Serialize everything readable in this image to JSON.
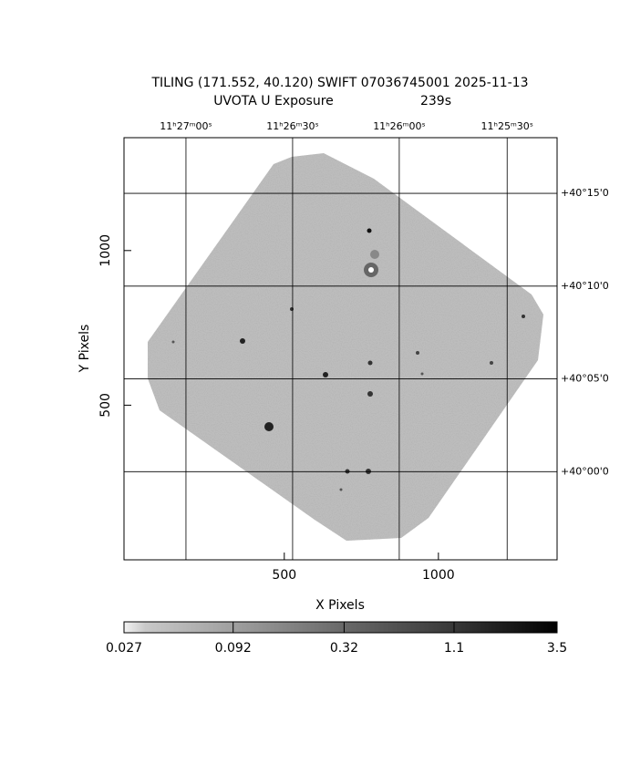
{
  "chart_data": {
    "type": "image",
    "title": "TILING (171.552, 40.120) SWIFT 07036745001 2025-11-13",
    "subtitle": "UVOTA U Exposure",
    "exposure": "239s",
    "xlabel": "X Pixels",
    "ylabel": "Y Pixels",
    "xlim": [
      -20,
      1385
    ],
    "ylim": [
      0,
      1365
    ],
    "xticks": [
      500,
      1000
    ],
    "yticks": [
      500,
      1000
    ],
    "grid": true,
    "top_ticks": [
      {
        "value": 181,
        "label": "11ʰ27ᵐ00ˢ"
      },
      {
        "value": 527,
        "label": "11ʰ26ᵐ30ˢ"
      },
      {
        "value": 873,
        "label": "11ʰ26ᵐ00ˢ"
      },
      {
        "value": 1223,
        "label": "11ʰ25ᵐ30ˢ"
      }
    ],
    "right_ticks": [
      {
        "value": 1185,
        "label": "+40°15'0"
      },
      {
        "value": 885,
        "label": "+40°10'0"
      },
      {
        "value": 585,
        "label": "+40°05'0"
      },
      {
        "value": 285,
        "label": "+40°00'0"
      }
    ],
    "colorbar": {
      "log": true,
      "lim": [
        0.027,
        3.5
      ],
      "ticks": [
        0.027,
        0.092,
        0.32,
        1.1,
        3.5
      ]
    }
  }
}
